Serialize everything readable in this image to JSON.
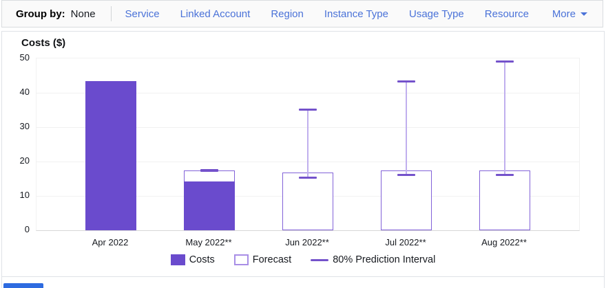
{
  "groupby_bar": {
    "label": "Group by:",
    "value": "None",
    "options": [
      "Service",
      "Linked Account",
      "Region",
      "Instance Type",
      "Usage Type",
      "Resource"
    ],
    "more_label": "More"
  },
  "chart_data": {
    "type": "bar",
    "title": "Costs ($)",
    "categories": [
      "Apr 2022",
      "May 2022**",
      "Jun 2022**",
      "Jul 2022**",
      "Aug 2022**"
    ],
    "series": [
      {
        "name": "Costs",
        "type": "bar_filled",
        "values": [
          43.5,
          14.2,
          null,
          null,
          null
        ]
      },
      {
        "name": "Forecast",
        "type": "bar_outlined",
        "values": [
          null,
          17.4,
          16.9,
          17.5,
          17.5
        ]
      },
      {
        "name": "80% Prediction Interval",
        "type": "interval",
        "ranges": [
          null,
          [
            17.3,
            17.6
          ],
          [
            15.4,
            35.2
          ],
          [
            16.1,
            43.3
          ],
          [
            16.1,
            49.2
          ]
        ]
      }
    ],
    "ylim": [
      0,
      50
    ],
    "yticks": [
      0,
      10,
      20,
      30,
      40,
      50
    ],
    "grid": true,
    "legend": [
      "Costs",
      "Forecast",
      "80% Prediction Interval"
    ],
    "legend_position": "bottom",
    "colors": {
      "costs_fill": "#6a4bcd",
      "forecast_border": "#8161d8",
      "legend_forecast_border": "#a88ee6",
      "interval_line": "#c0afee",
      "interval_cap": "#7452cb",
      "link_blue": "#4a72d8"
    }
  }
}
